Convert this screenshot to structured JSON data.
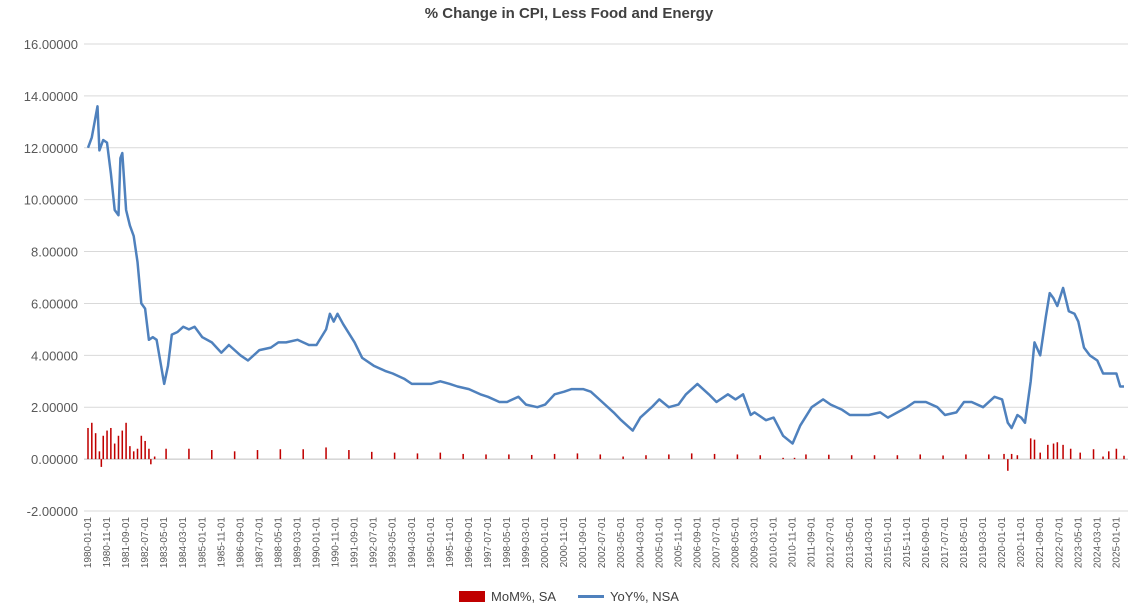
{
  "chart_data": {
    "type": "bar+line",
    "title": "% Change in CPI, Less Food and Energy",
    "ylim": [
      -2,
      16
    ],
    "yticks": [
      "-2.00000",
      "0.00000",
      "2.00000",
      "4.00000",
      "6.00000",
      "8.00000",
      "10.00000",
      "12.00000",
      "14.00000",
      "16.00000"
    ],
    "grid": true,
    "legend_position": "bottom",
    "x_start": "1980-01",
    "x_end": "2025-05",
    "xtick_labels": [
      "1980-01-01",
      "1980-11-01",
      "1981-09-01",
      "1982-07-01",
      "1983-05-01",
      "1984-03-01",
      "1985-01-01",
      "1985-11-01",
      "1986-09-01",
      "1987-07-01",
      "1988-05-01",
      "1989-03-01",
      "1990-01-01",
      "1990-11-01",
      "1991-09-01",
      "1992-07-01",
      "1993-05-01",
      "1994-03-01",
      "1995-01-01",
      "1995-11-01",
      "1996-09-01",
      "1997-07-01",
      "1998-05-01",
      "1999-03-01",
      "2000-01-01",
      "2000-11-01",
      "2001-09-01",
      "2002-07-01",
      "2003-05-01",
      "2004-03-01",
      "2005-01-01",
      "2005-11-01",
      "2006-09-01",
      "2007-07-01",
      "2008-05-01",
      "2009-03-01",
      "2010-01-01",
      "2010-11-01",
      "2011-09-01",
      "2012-07-01",
      "2013-05-01",
      "2014-03-01",
      "2015-01-01",
      "2015-11-01",
      "2016-09-01",
      "2017-07-01",
      "2018-05-01",
      "2019-03-01",
      "2020-01-01",
      "2020-11-01",
      "2021-09-01",
      "2022-07-01",
      "2023-05-01",
      "2024-03-01",
      "2025-01-01"
    ],
    "series": [
      {
        "name": "MoM%, SA",
        "kind": "bar",
        "color": "#C00000",
        "points": [
          [
            "1980-01",
            1.2
          ],
          [
            "1980-03",
            1.4
          ],
          [
            "1980-05",
            1.0
          ],
          [
            "1980-07",
            0.3
          ],
          [
            "1980-08",
            -0.3
          ],
          [
            "1980-09",
            0.9
          ],
          [
            "1980-11",
            1.1
          ],
          [
            "1981-01",
            1.2
          ],
          [
            "1981-03",
            0.6
          ],
          [
            "1981-05",
            0.9
          ],
          [
            "1981-07",
            1.1
          ],
          [
            "1981-09",
            1.4
          ],
          [
            "1981-11",
            0.5
          ],
          [
            "1982-01",
            0.3
          ],
          [
            "1982-03",
            0.4
          ],
          [
            "1982-05",
            0.9
          ],
          [
            "1982-07",
            0.7
          ],
          [
            "1982-09",
            0.4
          ],
          [
            "1982-10",
            -0.2
          ],
          [
            "1982-12",
            0.1
          ],
          [
            "1983-06",
            0.4
          ],
          [
            "1984-06",
            0.4
          ],
          [
            "1985-06",
            0.35
          ],
          [
            "1986-06",
            0.3
          ],
          [
            "1987-06",
            0.35
          ],
          [
            "1988-06",
            0.38
          ],
          [
            "1989-06",
            0.38
          ],
          [
            "1990-06",
            0.45
          ],
          [
            "1991-06",
            0.35
          ],
          [
            "1992-06",
            0.28
          ],
          [
            "1993-06",
            0.25
          ],
          [
            "1994-06",
            0.22
          ],
          [
            "1995-06",
            0.25
          ],
          [
            "1996-06",
            0.2
          ],
          [
            "1997-06",
            0.18
          ],
          [
            "1998-06",
            0.18
          ],
          [
            "1999-06",
            0.16
          ],
          [
            "2000-06",
            0.2
          ],
          [
            "2001-06",
            0.22
          ],
          [
            "2002-06",
            0.18
          ],
          [
            "2003-06",
            0.1
          ],
          [
            "2004-06",
            0.15
          ],
          [
            "2005-06",
            0.18
          ],
          [
            "2006-06",
            0.22
          ],
          [
            "2007-06",
            0.2
          ],
          [
            "2008-06",
            0.18
          ],
          [
            "2009-06",
            0.15
          ],
          [
            "2010-06",
            0.05
          ],
          [
            "2010-12",
            0.05
          ],
          [
            "2011-06",
            0.18
          ],
          [
            "2012-06",
            0.17
          ],
          [
            "2013-06",
            0.15
          ],
          [
            "2014-06",
            0.15
          ],
          [
            "2015-06",
            0.15
          ],
          [
            "2016-06",
            0.18
          ],
          [
            "2017-06",
            0.14
          ],
          [
            "2018-06",
            0.18
          ],
          [
            "2019-06",
            0.18
          ],
          [
            "2020-02",
            0.2
          ],
          [
            "2020-04",
            -0.45
          ],
          [
            "2020-06",
            0.2
          ],
          [
            "2020-09",
            0.15
          ],
          [
            "2021-04",
            0.8
          ],
          [
            "2021-06",
            0.75
          ],
          [
            "2021-09",
            0.25
          ],
          [
            "2022-01",
            0.55
          ],
          [
            "2022-04",
            0.6
          ],
          [
            "2022-06",
            0.65
          ],
          [
            "2022-09",
            0.55
          ],
          [
            "2023-01",
            0.4
          ],
          [
            "2023-06",
            0.25
          ],
          [
            "2024-01",
            0.38
          ],
          [
            "2024-06",
            0.1
          ],
          [
            "2024-09",
            0.3
          ],
          [
            "2025-01",
            0.4
          ],
          [
            "2025-05",
            0.13
          ]
        ]
      },
      {
        "name": "YoY%, NSA",
        "kind": "line",
        "color": "#4F81BD",
        "points": [
          [
            "1980-01",
            12.0
          ],
          [
            "1980-03",
            12.4
          ],
          [
            "1980-05",
            13.2
          ],
          [
            "1980-06",
            13.6
          ],
          [
            "1980-07",
            11.9
          ],
          [
            "1980-09",
            12.3
          ],
          [
            "1980-11",
            12.2
          ],
          [
            "1981-01",
            11.0
          ],
          [
            "1981-03",
            9.6
          ],
          [
            "1981-05",
            9.4
          ],
          [
            "1981-06",
            11.6
          ],
          [
            "1981-07",
            11.8
          ],
          [
            "1981-09",
            9.6
          ],
          [
            "1981-11",
            9.0
          ],
          [
            "1982-01",
            8.6
          ],
          [
            "1982-03",
            7.6
          ],
          [
            "1982-05",
            6.0
          ],
          [
            "1982-07",
            5.8
          ],
          [
            "1982-09",
            4.6
          ],
          [
            "1982-11",
            4.7
          ],
          [
            "1983-01",
            4.6
          ],
          [
            "1983-05",
            2.9
          ],
          [
            "1983-07",
            3.6
          ],
          [
            "1983-09",
            4.8
          ],
          [
            "1983-12",
            4.9
          ],
          [
            "1984-03",
            5.1
          ],
          [
            "1984-06",
            5.0
          ],
          [
            "1984-09",
            5.1
          ],
          [
            "1985-01",
            4.7
          ],
          [
            "1985-06",
            4.5
          ],
          [
            "1985-11",
            4.1
          ],
          [
            "1986-03",
            4.4
          ],
          [
            "1986-09",
            4.0
          ],
          [
            "1987-01",
            3.8
          ],
          [
            "1987-07",
            4.2
          ],
          [
            "1988-01",
            4.3
          ],
          [
            "1988-05",
            4.5
          ],
          [
            "1988-09",
            4.5
          ],
          [
            "1989-03",
            4.6
          ],
          [
            "1989-09",
            4.4
          ],
          [
            "1990-01",
            4.4
          ],
          [
            "1990-06",
            5.0
          ],
          [
            "1990-08",
            5.6
          ],
          [
            "1990-10",
            5.3
          ],
          [
            "1990-12",
            5.6
          ],
          [
            "1991-03",
            5.2
          ],
          [
            "1991-09",
            4.5
          ],
          [
            "1992-01",
            3.9
          ],
          [
            "1992-07",
            3.6
          ],
          [
            "1993-01",
            3.4
          ],
          [
            "1993-05",
            3.3
          ],
          [
            "1993-11",
            3.1
          ],
          [
            "1994-03",
            2.9
          ],
          [
            "1994-09",
            2.9
          ],
          [
            "1995-01",
            2.9
          ],
          [
            "1995-06",
            3.0
          ],
          [
            "1995-11",
            2.9
          ],
          [
            "1996-03",
            2.8
          ],
          [
            "1996-09",
            2.7
          ],
          [
            "1997-03",
            2.5
          ],
          [
            "1997-07",
            2.4
          ],
          [
            "1998-01",
            2.2
          ],
          [
            "1998-05",
            2.2
          ],
          [
            "1998-11",
            2.4
          ],
          [
            "1999-03",
            2.1
          ],
          [
            "1999-09",
            2.0
          ],
          [
            "2000-01",
            2.1
          ],
          [
            "2000-06",
            2.5
          ],
          [
            "2000-11",
            2.6
          ],
          [
            "2001-03",
            2.7
          ],
          [
            "2001-09",
            2.7
          ],
          [
            "2002-01",
            2.6
          ],
          [
            "2002-07",
            2.2
          ],
          [
            "2003-01",
            1.8
          ],
          [
            "2003-05",
            1.5
          ],
          [
            "2003-11",
            1.1
          ],
          [
            "2004-03",
            1.6
          ],
          [
            "2004-09",
            2.0
          ],
          [
            "2005-01",
            2.3
          ],
          [
            "2005-06",
            2.0
          ],
          [
            "2005-11",
            2.1
          ],
          [
            "2006-03",
            2.5
          ],
          [
            "2006-09",
            2.9
          ],
          [
            "2007-03",
            2.5
          ],
          [
            "2007-07",
            2.2
          ],
          [
            "2008-01",
            2.5
          ],
          [
            "2008-05",
            2.3
          ],
          [
            "2008-09",
            2.5
          ],
          [
            "2009-01",
            1.7
          ],
          [
            "2009-03",
            1.8
          ],
          [
            "2009-09",
            1.5
          ],
          [
            "2010-01",
            1.6
          ],
          [
            "2010-06",
            0.9
          ],
          [
            "2010-11",
            0.6
          ],
          [
            "2011-03",
            1.3
          ],
          [
            "2011-09",
            2.0
          ],
          [
            "2012-03",
            2.3
          ],
          [
            "2012-07",
            2.1
          ],
          [
            "2013-01",
            1.9
          ],
          [
            "2013-05",
            1.7
          ],
          [
            "2013-11",
            1.7
          ],
          [
            "2014-03",
            1.7
          ],
          [
            "2014-09",
            1.8
          ],
          [
            "2015-01",
            1.6
          ],
          [
            "2015-06",
            1.8
          ],
          [
            "2015-11",
            2.0
          ],
          [
            "2016-03",
            2.2
          ],
          [
            "2016-09",
            2.2
          ],
          [
            "2017-03",
            2.0
          ],
          [
            "2017-07",
            1.7
          ],
          [
            "2018-01",
            1.8
          ],
          [
            "2018-05",
            2.2
          ],
          [
            "2018-09",
            2.2
          ],
          [
            "2019-03",
            2.0
          ],
          [
            "2019-09",
            2.4
          ],
          [
            "2020-01",
            2.3
          ],
          [
            "2020-04",
            1.4
          ],
          [
            "2020-06",
            1.2
          ],
          [
            "2020-09",
            1.7
          ],
          [
            "2020-11",
            1.6
          ],
          [
            "2021-01",
            1.4
          ],
          [
            "2021-04",
            3.0
          ],
          [
            "2021-06",
            4.5
          ],
          [
            "2021-09",
            4.0
          ],
          [
            "2021-12",
            5.5
          ],
          [
            "2022-02",
            6.4
          ],
          [
            "2022-04",
            6.2
          ],
          [
            "2022-06",
            5.9
          ],
          [
            "2022-09",
            6.6
          ],
          [
            "2022-12",
            5.7
          ],
          [
            "2023-03",
            5.6
          ],
          [
            "2023-05",
            5.3
          ],
          [
            "2023-08",
            4.3
          ],
          [
            "2023-11",
            4.0
          ],
          [
            "2024-03",
            3.8
          ],
          [
            "2024-06",
            3.3
          ],
          [
            "2024-09",
            3.3
          ],
          [
            "2025-01",
            3.3
          ],
          [
            "2025-03",
            2.8
          ],
          [
            "2025-05",
            2.8
          ]
        ]
      }
    ]
  }
}
